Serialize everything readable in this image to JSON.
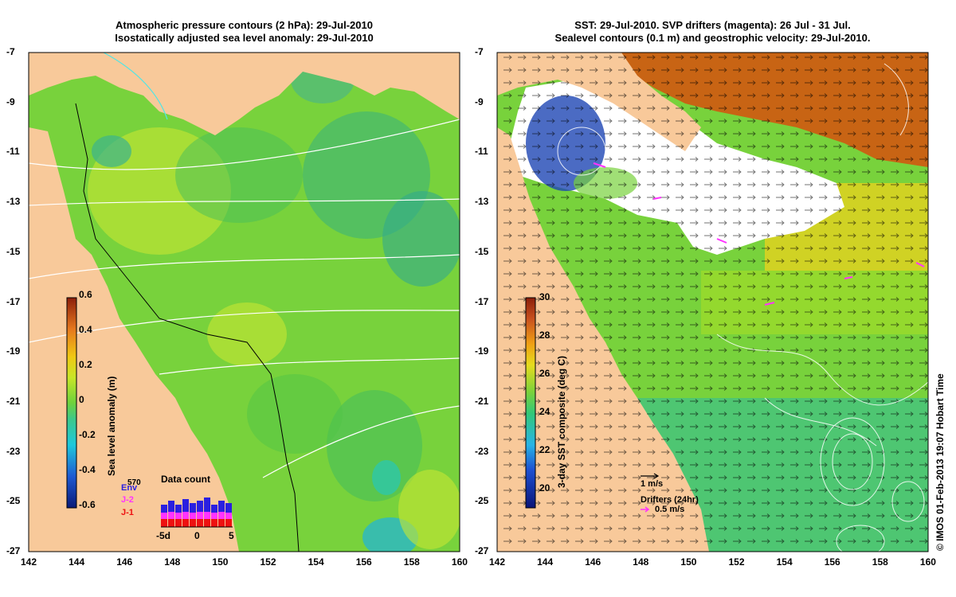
{
  "left_panel": {
    "title_line1": "Atmospheric pressure contours (2 hPa): 29-Jul-2010",
    "title_line2": "Isostatically adjusted sea level anomaly: 29-Jul-2010",
    "colorbar_label": "Sea level anomaly (m)",
    "colorbar_ticks": [
      "0.6",
      "0.4",
      "0.2",
      "0",
      "-0.2",
      "-0.4",
      "-0.6"
    ],
    "colorbar_range": [
      -0.6,
      0.6
    ],
    "inset_title": "Data count",
    "inset_ymax": "570",
    "inset_x_ticks": [
      "-5d",
      "0",
      "5"
    ],
    "missions": [
      {
        "name": "Env",
        "color": "#2a1fe0"
      },
      {
        "name": "J-2",
        "color": "#ff33ff"
      },
      {
        "name": "J-1",
        "color": "#ee1111"
      }
    ]
  },
  "right_panel": {
    "title_line1": "SST: 29-Jul-2010. SVP drifters (magenta): 26 Jul - 31 Jul.",
    "title_line2": "Sealevel contours (0.1 m) and geostrophic velocity: 29-Jul-2010.",
    "colorbar_label": "3-day SST composite (deg C)",
    "colorbar_ticks": [
      "30",
      "28",
      "26",
      "24",
      "22",
      "20"
    ],
    "colorbar_range": [
      19,
      30
    ],
    "velocity_scale_label": "1 m/s",
    "drifters_label": "Drifters (24hr)",
    "drifter_speed_label": "0.5 m/s"
  },
  "axes": {
    "lat_ticks": [
      "-7",
      "-9",
      "-11",
      "-13",
      "-15",
      "-17",
      "-19",
      "-21",
      "-23",
      "-25",
      "-27"
    ],
    "lon_ticks": [
      "142",
      "144",
      "146",
      "148",
      "150",
      "152",
      "154",
      "156",
      "158",
      "160"
    ],
    "lat_range": [
      -27,
      -7
    ],
    "lon_range": [
      142,
      160
    ]
  },
  "credit": "© IMOS 01-Feb-2013 19:07 Hobart Time",
  "colors": {
    "land": "#f8c99a",
    "sla_ocean": "#78d23c",
    "cloud": "#ffffff",
    "drifter": "#ff33ff"
  }
}
